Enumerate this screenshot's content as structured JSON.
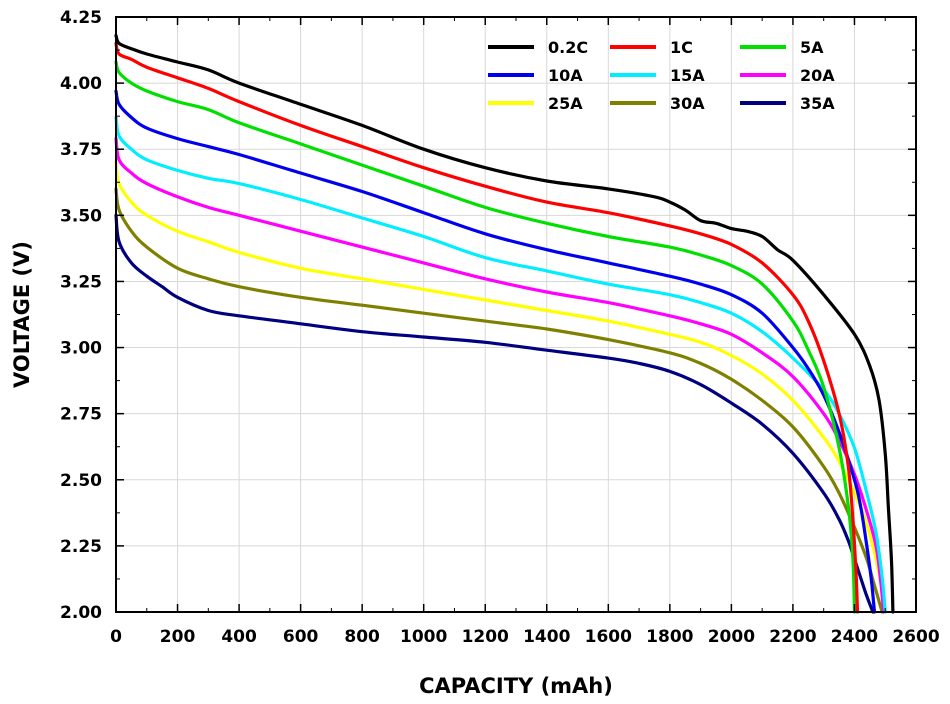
{
  "chart_data": {
    "type": "line",
    "title": "",
    "xlabel": "CAPACITY (mAh)",
    "ylabel": "VOLTAGE (V)",
    "xlim": [
      0,
      2600
    ],
    "ylim": [
      2.0,
      4.25
    ],
    "xticks": [
      0,
      200,
      400,
      600,
      800,
      1000,
      1200,
      1400,
      1600,
      1800,
      2000,
      2200,
      2400,
      2600
    ],
    "yticks": [
      "2.00",
      "2.25",
      "2.50",
      "2.75",
      "3.00",
      "3.25",
      "3.50",
      "3.75",
      "4.00",
      "4.25"
    ],
    "grid": true,
    "legend_position": "top-right",
    "series": [
      {
        "name": "0.2C",
        "color": "#000000",
        "x": [
          0,
          10,
          50,
          100,
          200,
          300,
          400,
          600,
          800,
          1000,
          1200,
          1400,
          1600,
          1750,
          1800,
          1850,
          1900,
          1950,
          2000,
          2050,
          2100,
          2150,
          2200,
          2300,
          2400,
          2450,
          2480,
          2500,
          2510,
          2520,
          2525
        ],
        "y": [
          4.18,
          4.15,
          4.13,
          4.11,
          4.08,
          4.05,
          4.0,
          3.92,
          3.84,
          3.75,
          3.68,
          3.63,
          3.6,
          3.57,
          3.55,
          3.52,
          3.48,
          3.47,
          3.45,
          3.44,
          3.42,
          3.37,
          3.33,
          3.2,
          3.05,
          2.93,
          2.8,
          2.6,
          2.4,
          2.2,
          2.0
        ]
      },
      {
        "name": "1C",
        "color": "#ff0000",
        "x": [
          0,
          10,
          50,
          100,
          200,
          300,
          400,
          600,
          800,
          1000,
          1200,
          1400,
          1600,
          1800,
          1900,
          2000,
          2100,
          2200,
          2250,
          2300,
          2350,
          2380,
          2395,
          2405,
          2410
        ],
        "y": [
          4.15,
          4.11,
          4.09,
          4.06,
          4.02,
          3.98,
          3.93,
          3.84,
          3.76,
          3.68,
          3.61,
          3.55,
          3.51,
          3.46,
          3.43,
          3.39,
          3.32,
          3.2,
          3.1,
          2.95,
          2.75,
          2.55,
          2.35,
          2.15,
          2.0
        ]
      },
      {
        "name": "5A",
        "color": "#00e000",
        "x": [
          0,
          10,
          50,
          100,
          200,
          300,
          400,
          600,
          800,
          1000,
          1200,
          1400,
          1600,
          1800,
          1900,
          2000,
          2100,
          2200,
          2250,
          2300,
          2350,
          2380,
          2395,
          2400
        ],
        "y": [
          4.08,
          4.04,
          4.0,
          3.97,
          3.93,
          3.9,
          3.85,
          3.77,
          3.69,
          3.61,
          3.53,
          3.47,
          3.42,
          3.38,
          3.35,
          3.31,
          3.24,
          3.1,
          2.99,
          2.85,
          2.62,
          2.4,
          2.2,
          2.0
        ]
      },
      {
        "name": "10A",
        "color": "#0000ee",
        "x": [
          0,
          10,
          50,
          100,
          200,
          300,
          400,
          600,
          800,
          1000,
          1200,
          1400,
          1600,
          1800,
          1900,
          2000,
          2100,
          2200,
          2250,
          2300,
          2350,
          2400,
          2420,
          2440,
          2455,
          2465
        ],
        "y": [
          3.97,
          3.92,
          3.87,
          3.83,
          3.79,
          3.76,
          3.73,
          3.66,
          3.59,
          3.51,
          3.43,
          3.37,
          3.32,
          3.27,
          3.24,
          3.2,
          3.13,
          3.0,
          2.92,
          2.82,
          2.68,
          2.5,
          2.4,
          2.25,
          2.12,
          2.0
        ]
      },
      {
        "name": "15A",
        "color": "#00eeff",
        "x": [
          0,
          10,
          50,
          100,
          200,
          300,
          400,
          600,
          800,
          1000,
          1200,
          1400,
          1600,
          1800,
          1900,
          2000,
          2100,
          2200,
          2300,
          2350,
          2400,
          2440,
          2470,
          2490,
          2500
        ],
        "y": [
          3.87,
          3.8,
          3.75,
          3.71,
          3.67,
          3.64,
          3.62,
          3.56,
          3.49,
          3.42,
          3.34,
          3.29,
          3.24,
          3.2,
          3.17,
          3.13,
          3.06,
          2.96,
          2.84,
          2.75,
          2.62,
          2.45,
          2.3,
          2.13,
          2.0
        ]
      },
      {
        "name": "20A",
        "color": "#ff00ff",
        "x": [
          0,
          10,
          50,
          100,
          200,
          300,
          400,
          600,
          800,
          1000,
          1200,
          1400,
          1600,
          1800,
          1900,
          2000,
          2100,
          2200,
          2300,
          2350,
          2400,
          2440,
          2470,
          2485,
          2495
        ],
        "y": [
          3.79,
          3.71,
          3.66,
          3.62,
          3.57,
          3.53,
          3.5,
          3.44,
          3.38,
          3.32,
          3.26,
          3.21,
          3.17,
          3.12,
          3.09,
          3.05,
          2.98,
          2.89,
          2.75,
          2.65,
          2.52,
          2.38,
          2.25,
          2.12,
          2.0
        ]
      },
      {
        "name": "25A",
        "color": "#ffff00",
        "x": [
          0,
          10,
          50,
          100,
          200,
          300,
          400,
          600,
          800,
          1000,
          1200,
          1400,
          1600,
          1800,
          1900,
          2000,
          2100,
          2200,
          2300,
          2350,
          2400,
          2440,
          2470,
          2490,
          2500
        ],
        "y": [
          3.7,
          3.62,
          3.55,
          3.5,
          3.44,
          3.4,
          3.36,
          3.3,
          3.26,
          3.22,
          3.18,
          3.14,
          3.1,
          3.05,
          3.02,
          2.97,
          2.9,
          2.8,
          2.66,
          2.57,
          2.45,
          2.33,
          2.2,
          2.08,
          2.0
        ]
      },
      {
        "name": "30A",
        "color": "#808000",
        "x": [
          0,
          10,
          50,
          100,
          200,
          300,
          400,
          600,
          800,
          1000,
          1200,
          1400,
          1600,
          1800,
          1900,
          2000,
          2100,
          2200,
          2300,
          2350,
          2400,
          2440,
          2465,
          2480,
          2490
        ],
        "y": [
          3.6,
          3.52,
          3.44,
          3.38,
          3.3,
          3.26,
          3.23,
          3.19,
          3.16,
          3.13,
          3.1,
          3.07,
          3.03,
          2.98,
          2.94,
          2.88,
          2.8,
          2.7,
          2.55,
          2.45,
          2.32,
          2.2,
          2.1,
          2.04,
          2.0
        ]
      },
      {
        "name": "35A",
        "color": "#000080",
        "x": [
          0,
          10,
          50,
          100,
          150,
          200,
          300,
          400,
          600,
          800,
          1000,
          1200,
          1400,
          1600,
          1700,
          1800,
          1900,
          2000,
          2100,
          2200,
          2300,
          2350,
          2380,
          2400,
          2420,
          2440,
          2460
        ],
        "y": [
          3.5,
          3.4,
          3.32,
          3.27,
          3.23,
          3.19,
          3.14,
          3.12,
          3.09,
          3.06,
          3.04,
          3.02,
          2.99,
          2.96,
          2.94,
          2.91,
          2.86,
          2.79,
          2.71,
          2.6,
          2.45,
          2.35,
          2.27,
          2.2,
          2.13,
          2.06,
          2.0
        ]
      }
    ]
  }
}
